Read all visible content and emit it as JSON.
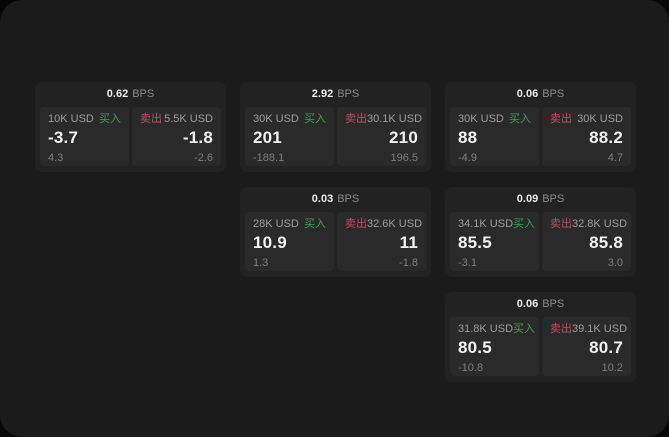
{
  "labels": {
    "bps": "BPS",
    "buy": "买入",
    "sell": "卖出"
  },
  "colors": {
    "buy": "#3ba153",
    "sell": "#c44b63",
    "window_bg": "#1b1b1b",
    "card_bg": "#222222",
    "panel_bg": "#2a2a2a"
  },
  "cards": [
    {
      "spread": "0.62",
      "buy": {
        "amount": "10K USD",
        "price": "-3.7",
        "delta": "4.3"
      },
      "sell": {
        "amount": "5.5K USD",
        "price": "-1.8",
        "delta": "-2.6"
      }
    },
    {
      "spread": "2.92",
      "buy": {
        "amount": "30K USD",
        "price": "201",
        "delta": "-188.1"
      },
      "sell": {
        "amount": "30.1K USD",
        "price": "210",
        "delta": "196.5"
      }
    },
    {
      "spread": "0.06",
      "buy": {
        "amount": "30K USD",
        "price": "88",
        "delta": "-4.9"
      },
      "sell": {
        "amount": "30K USD",
        "price": "88.2",
        "delta": "4.7"
      }
    },
    {
      "spread": "0.03",
      "buy": {
        "amount": "28K USD",
        "price": "10.9",
        "delta": "1.3"
      },
      "sell": {
        "amount": "32.6K USD",
        "price": "11",
        "delta": "-1.8"
      }
    },
    {
      "spread": "0.09",
      "buy": {
        "amount": "34.1K USD",
        "price": "85.5",
        "delta": "-3.1"
      },
      "sell": {
        "amount": "32.8K USD",
        "price": "85.8",
        "delta": "3.0"
      }
    },
    {
      "spread": "0.06",
      "buy": {
        "amount": "31.8K USD",
        "price": "80.5",
        "delta": "-10.8"
      },
      "sell": {
        "amount": "39.1K USD",
        "price": "80.7",
        "delta": "10.2"
      }
    }
  ]
}
